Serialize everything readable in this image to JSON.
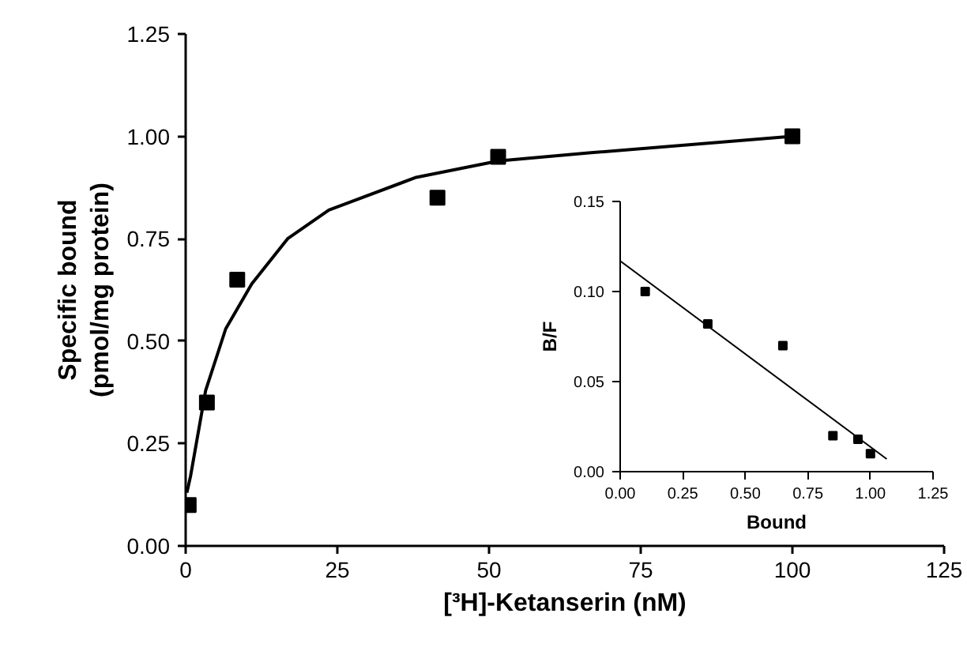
{
  "chart_data": [
    {
      "type": "scatter",
      "xlabel": "[³H]-Ketanserin (nM)",
      "ylabel": "Specific bound\n(pmol/mg protein)",
      "grid": false,
      "xlim": [
        0,
        125
      ],
      "ylim": [
        0,
        1.25
      ],
      "xticks": [
        0,
        25,
        50,
        75,
        100,
        125
      ],
      "yticks": [
        {
          "value": 0,
          "label": "0.00"
        },
        {
          "value": 0.25,
          "label": "0.25"
        },
        {
          "value": 0.5,
          "label": "0.50"
        },
        {
          "value": 0.75,
          "label": "0.75"
        },
        {
          "value": 1.0,
          "label": "1.00"
        },
        {
          "value": 1.25,
          "label": "1.25"
        }
      ],
      "series": [
        {
          "color": "#000000",
          "marker": "square",
          "x": [
            0.5,
            3.5,
            8.5,
            41.5,
            51.5,
            100
          ],
          "values": [
            0.1,
            0.35,
            0.65,
            0.85,
            0.95,
            1.0
          ]
        },
        {
          "type": "line",
          "marker": "none",
          "color": "#000000",
          "x": [
            0.2,
            0.8,
            3.3,
            6.6,
            10.9,
            16.8,
            23.6,
            38,
            51.5,
            66.8,
            100
          ],
          "values": [
            0.13,
            0.17,
            0.38,
            0.53,
            0.64,
            0.75,
            0.82,
            0.9,
            0.94,
            0.96,
            1.0
          ]
        }
      ]
    },
    {
      "type": "scatter",
      "xlabel": "Bound",
      "ylabel": "B/F",
      "grid": false,
      "xlim": [
        0,
        1.25
      ],
      "ylim": [
        0,
        0.15
      ],
      "xticks": [
        {
          "value": 0,
          "label": "0.00"
        },
        {
          "value": 0.25,
          "label": "0.25"
        },
        {
          "value": 0.5,
          "label": "0.50"
        },
        {
          "value": 0.75,
          "label": "0.75"
        },
        {
          "value": 1.0,
          "label": "1.00"
        },
        {
          "value": 1.25,
          "label": "1.25"
        }
      ],
      "yticks": [
        {
          "value": 0,
          "label": "0.00"
        },
        {
          "value": 0.05,
          "label": "0.05"
        },
        {
          "value": 0.1,
          "label": "0.10"
        },
        {
          "value": 0.15,
          "label": "0.15"
        }
      ],
      "series": [
        {
          "color": "#000000",
          "marker": "square",
          "x": [
            0.1,
            0.35,
            0.65,
            0.85,
            0.95,
            1.0
          ],
          "values": [
            0.1,
            0.082,
            0.07,
            0.02,
            0.018,
            0.01
          ]
        },
        {
          "type": "line",
          "marker": "none",
          "color": "#000000",
          "x": [
            0,
            1.065
          ],
          "values": [
            0.117,
            0.007
          ]
        }
      ]
    }
  ]
}
